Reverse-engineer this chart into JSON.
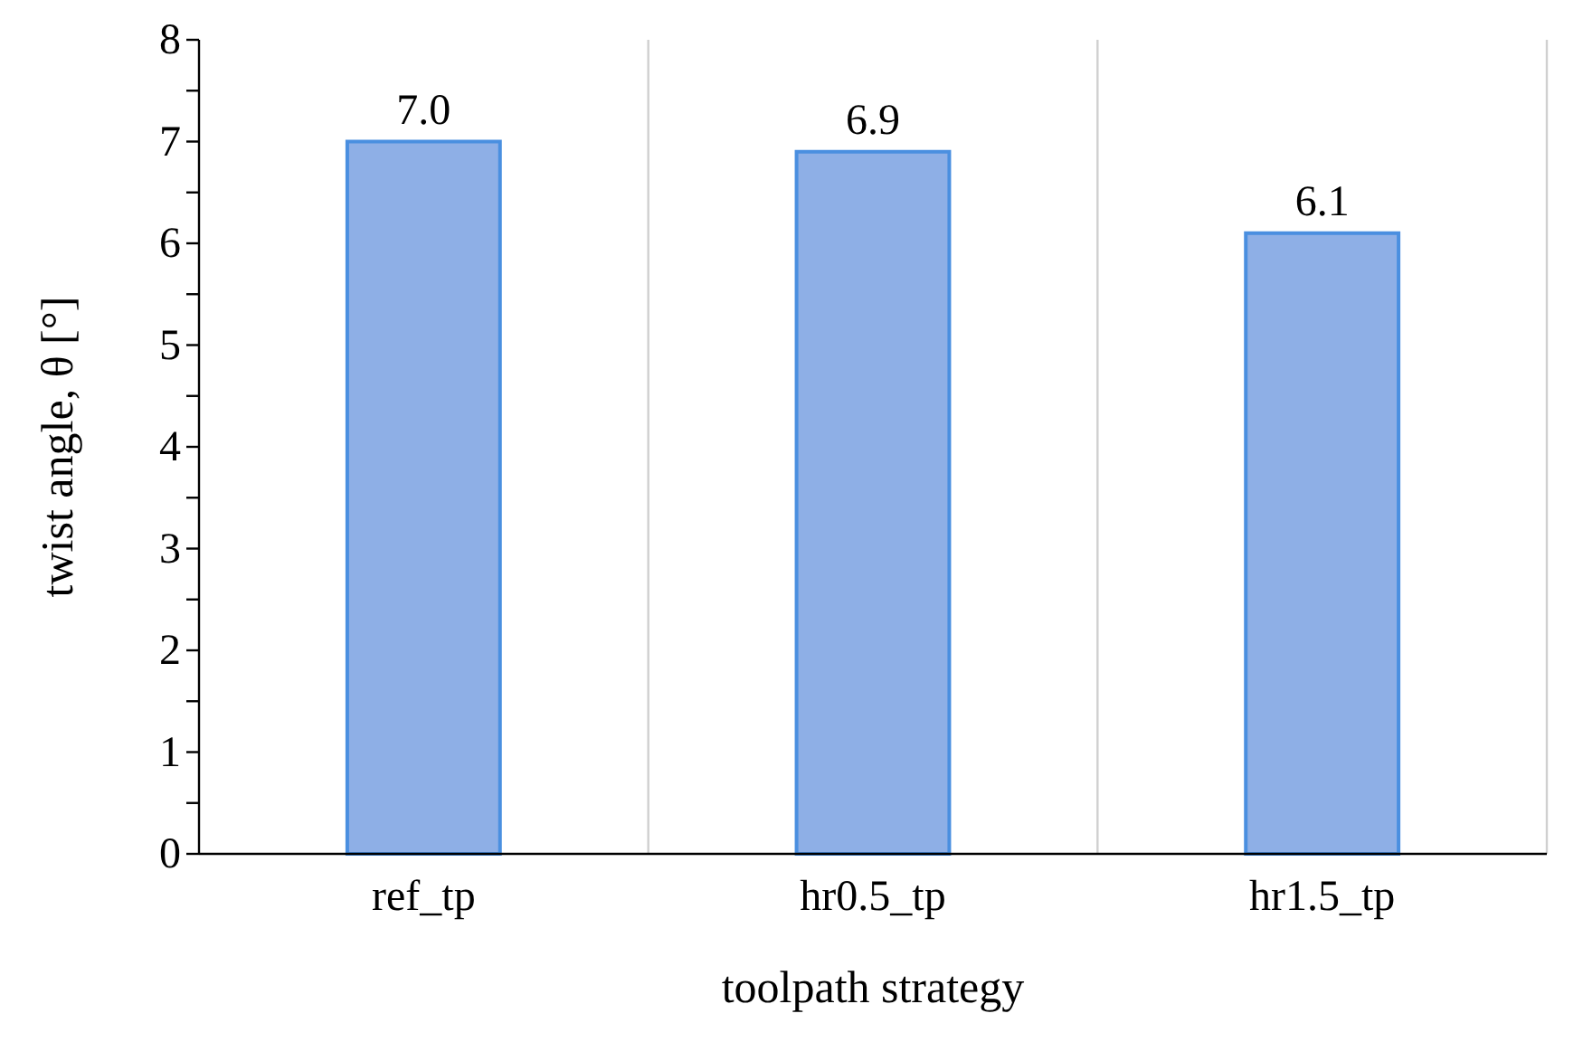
{
  "chart_data": {
    "type": "bar",
    "xlabel": "toolpath strategy",
    "ylabel": "twist angle, θ [°]",
    "categories": [
      "ref_tp",
      "hr0.5_tp",
      "hr1.5_tp"
    ],
    "values": [
      7.0,
      6.9,
      6.1
    ],
    "value_labels": [
      "7.0",
      "6.9",
      "6.1"
    ],
    "color": "#8eafe6",
    "ylim": [
      0,
      8
    ],
    "yticks": [
      0,
      {
        "value": 0.5,
        "label": null
      },
      1,
      {
        "value": 1.5,
        "label": null
      },
      2,
      {
        "value": 2.5,
        "label": null
      },
      3,
      {
        "value": 3.5,
        "label": null
      },
      4,
      {
        "value": 4.5,
        "label": null
      },
      5,
      {
        "value": 5.5,
        "label": null
      },
      6,
      {
        "value": 6.5,
        "label": null
      },
      7,
      {
        "value": 7.5,
        "label": null
      },
      8
    ],
    "grid": "x"
  }
}
